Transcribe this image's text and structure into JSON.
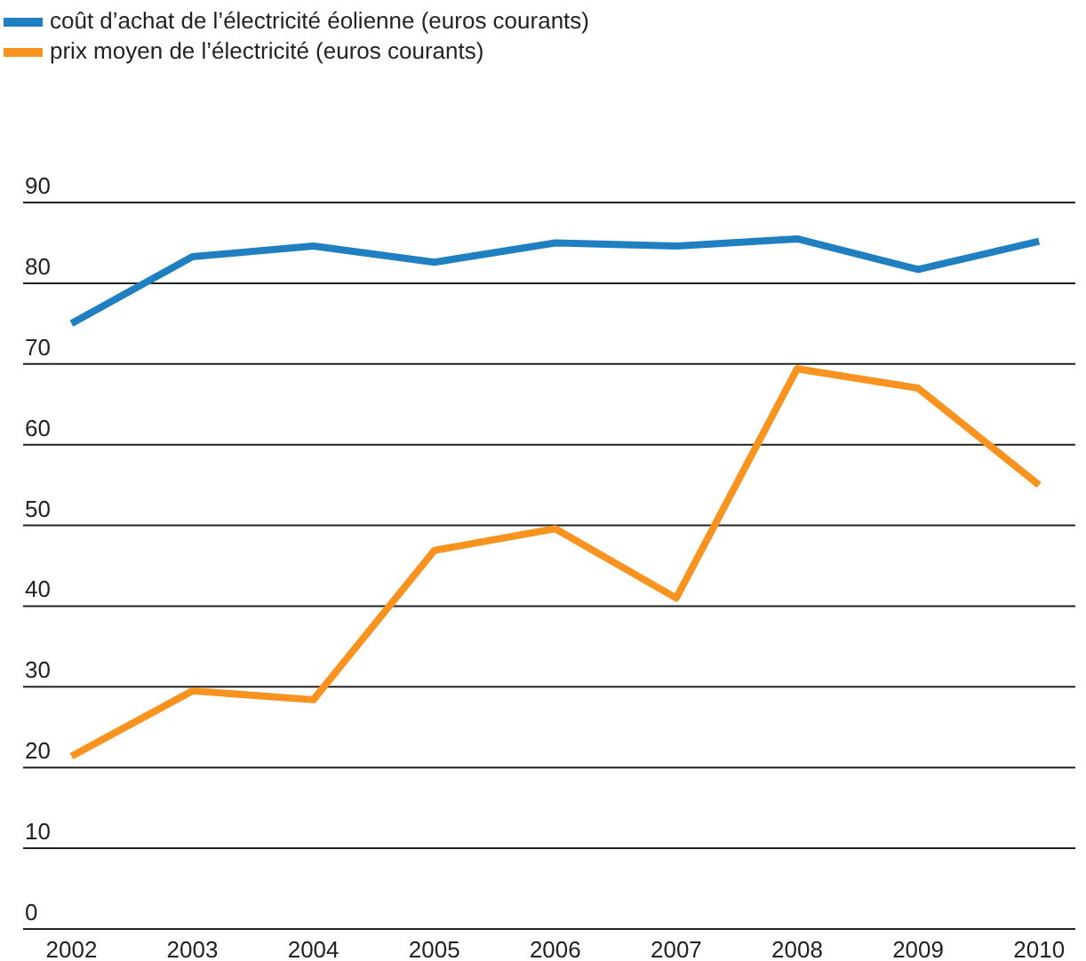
{
  "chart_data": {
    "type": "line",
    "x": [
      2002,
      2003,
      2004,
      2005,
      2006,
      2007,
      2008,
      2009,
      2010
    ],
    "xlim": [
      2001.6,
      2010.3
    ],
    "xticks": [
      2002,
      2003,
      2004,
      2005,
      2006,
      2007,
      2008,
      2009,
      2010
    ],
    "ylim": [
      0,
      90
    ],
    "yticks": [
      0,
      10,
      20,
      30,
      40,
      50,
      60,
      70,
      80,
      90
    ],
    "grid": "y",
    "legend": "top left",
    "marker": "none",
    "line_style": "solid",
    "series": [
      {
        "name": "coût d’achat de l’électricité éolienne (euros courants)",
        "color": "#1f7fc0",
        "values": [
          75,
          83.3,
          84.6,
          82.6,
          85,
          84.6,
          85.5,
          81.7,
          85.2
        ]
      },
      {
        "name": "prix moyen de l’électricité (euros courants)",
        "color": "#f7931e",
        "values": [
          21.4,
          29.5,
          28.4,
          46.9,
          49.6,
          41,
          69.4,
          67,
          55
        ]
      }
    ]
  }
}
